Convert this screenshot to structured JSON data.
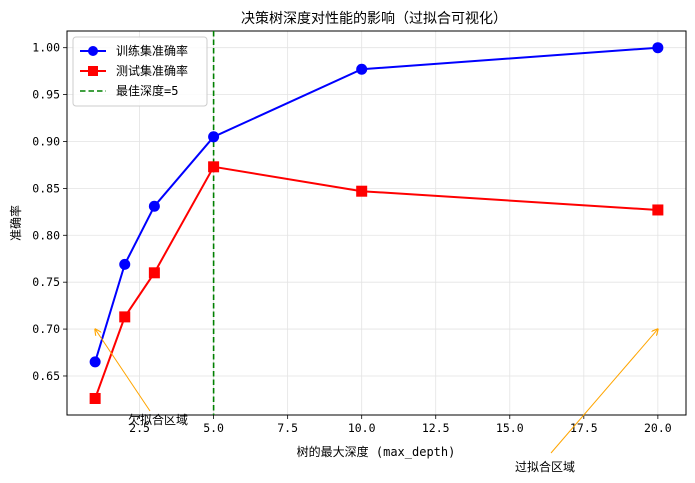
{
  "chart_data": {
    "type": "line",
    "title": "决策树深度对性能的影响（过拟合可视化）",
    "xlabel": "树的最大深度 (max_depth)",
    "ylabel": "准确率",
    "xlim": [
      0.05,
      20.95
    ],
    "ylim": [
      0.6084,
      1.0178
    ],
    "xticks": [
      "2.5",
      "5.0",
      "7.5",
      "10.0",
      "12.5",
      "15.0",
      "17.5",
      "20.0"
    ],
    "yticks": [
      "0.65",
      "0.70",
      "0.75",
      "0.80",
      "0.85",
      "0.90",
      "0.95",
      "1.00"
    ],
    "grid": true,
    "legend_position": "top-left",
    "x": [
      1,
      2,
      3,
      5,
      10,
      20
    ],
    "series": [
      {
        "name": "训练集准确率",
        "values": [
          0.665,
          0.769,
          0.831,
          0.905,
          0.977,
          1.0
        ],
        "color": "#0000ff",
        "marker": "circle"
      },
      {
        "name": "测试集准确率",
        "values": [
          0.626,
          0.713,
          0.76,
          0.873,
          0.847,
          0.827
        ],
        "color": "#ff0000",
        "marker": "square"
      }
    ],
    "vline": {
      "x": 5,
      "name": "最佳深度=5",
      "color": "#008000"
    },
    "annotations": [
      {
        "text": "欠拟合区域",
        "xy": [
          1,
          0.7
        ],
        "color": "#ffa500"
      },
      {
        "text": "过拟合区域",
        "xy": [
          20,
          0.7
        ],
        "color": "#ffa500"
      }
    ]
  }
}
